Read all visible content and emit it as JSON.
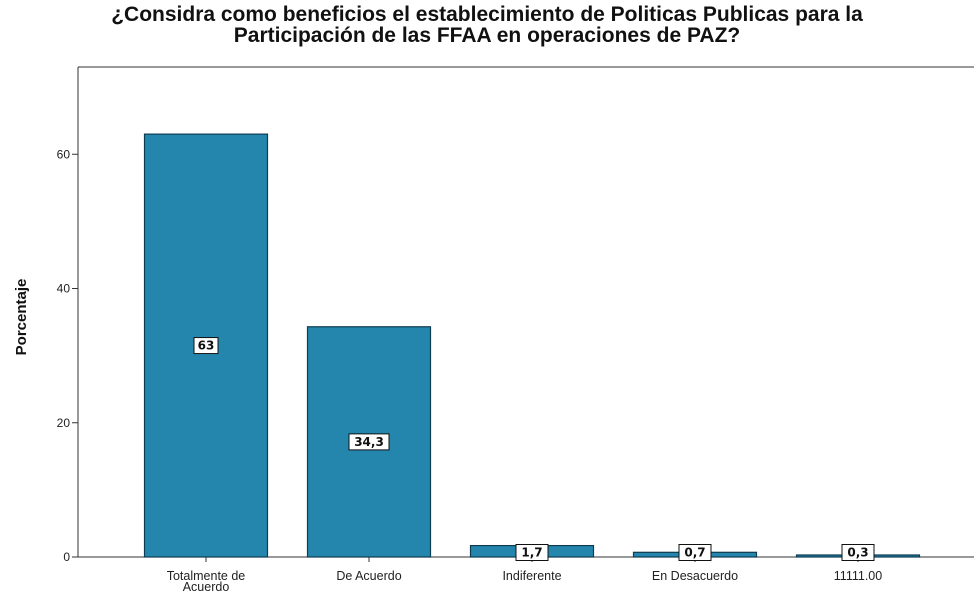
{
  "chart_data": {
    "type": "bar",
    "title_lines": [
      "¿Considra como beneficios el establecimiento de Politicas Publicas para la",
      "Participación de las FFAA en operaciones de PAZ?"
    ],
    "ylabel": "Porcentaje",
    "xlabel": "",
    "categories": [
      [
        "Totalmente de",
        "Acuerdo"
      ],
      [
        "De Acuerdo"
      ],
      [
        "Indiferente"
      ],
      [
        "En Desacuerdo"
      ],
      [
        "11111.00"
      ]
    ],
    "values": [
      63,
      34.3,
      1.7,
      0.7,
      0.3
    ],
    "data_labels": [
      "63",
      "34,3",
      "1,7",
      "0,7",
      "0,3"
    ],
    "yticks": [
      0,
      20,
      40,
      60
    ],
    "ylim": [
      0,
      73
    ],
    "grid": false,
    "legend": "none",
    "colors": {
      "bar_fill": "#2586ad",
      "bar_stroke": "#0d3b50",
      "axis": "#333333",
      "label_box_fill": "#ffffff",
      "label_box_stroke": "#111111"
    }
  }
}
